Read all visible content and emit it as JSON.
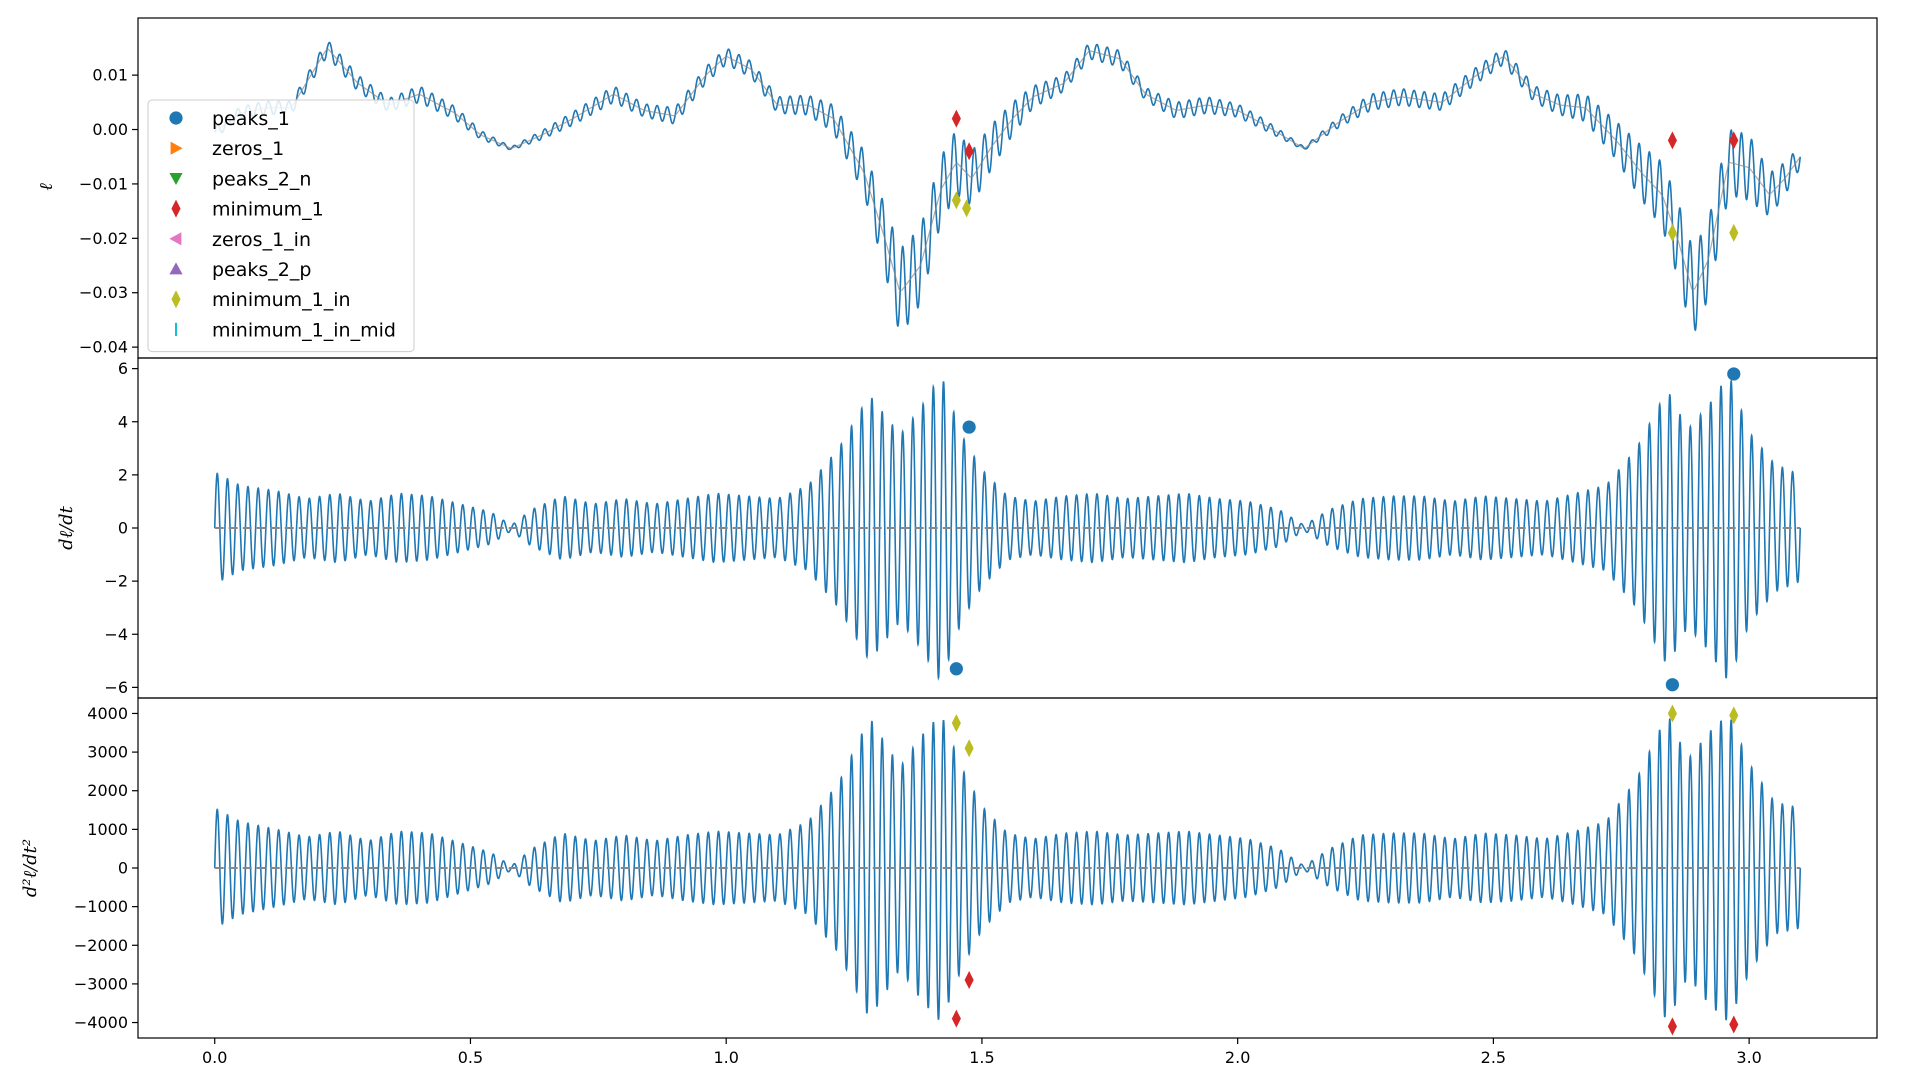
{
  "chart_data": [
    {
      "type": "line",
      "panel": "top",
      "ylabel": "ℓ",
      "xlim": [
        -0.15,
        3.25
      ],
      "ylim": [
        -0.042,
        0.0205
      ],
      "yticks": [
        0.01,
        0.0,
        -0.01,
        -0.02,
        -0.03,
        -0.04
      ],
      "ytick_labels": [
        "0.01",
        "0.00",
        "−0.01",
        "−0.02",
        "−0.03",
        "−0.04"
      ],
      "x_range": [
        0.0,
        3.1
      ],
      "oscillation_cycles": 155,
      "envelope_x": [
        0.0,
        0.05,
        0.1,
        0.15,
        0.22,
        0.28,
        0.34,
        0.4,
        0.47,
        0.52,
        0.58,
        0.64,
        0.7,
        0.78,
        0.84,
        0.9,
        0.96,
        1.0,
        1.05,
        1.1,
        1.16,
        1.21,
        1.27,
        1.31,
        1.34,
        1.38,
        1.42,
        1.45,
        1.48,
        1.52,
        1.56,
        1.6,
        1.66,
        1.71,
        1.77,
        1.82,
        1.88,
        1.94,
        2.0,
        2.05,
        2.13,
        2.2,
        2.26,
        2.32,
        2.4,
        2.46,
        2.52,
        2.58,
        2.63,
        2.68,
        2.74,
        2.79,
        2.83,
        2.86,
        2.89,
        2.92,
        2.96,
        3.0,
        3.04,
        3.07,
        3.1
      ],
      "envelope_mid": [
        -0.0005,
        0.003,
        0.004,
        0.004,
        0.015,
        0.0085,
        0.0045,
        0.0065,
        0.003,
        -0.001,
        -0.0035,
        -0.001,
        0.002,
        0.0065,
        0.0035,
        0.0025,
        0.01,
        0.0135,
        0.011,
        0.0045,
        0.0045,
        0.002,
        -0.008,
        -0.02,
        -0.03,
        -0.025,
        -0.011,
        -0.006,
        -0.009,
        -0.003,
        0.002,
        0.006,
        0.0085,
        0.0145,
        0.013,
        0.0065,
        0.0035,
        0.0045,
        0.0035,
        0.001,
        -0.0035,
        0.0015,
        0.005,
        0.006,
        0.005,
        0.0095,
        0.0135,
        0.0065,
        0.0045,
        0.004,
        -0.002,
        -0.008,
        -0.012,
        -0.02,
        -0.03,
        -0.024,
        -0.006,
        -0.007,
        -0.012,
        -0.009,
        -0.005
      ],
      "envelope_amp": [
        0.001,
        0.0012,
        0.0012,
        0.0012,
        0.0015,
        0.0015,
        0.0012,
        0.0015,
        0.0012,
        0.0008,
        0.0003,
        0.0008,
        0.0012,
        0.0015,
        0.0012,
        0.0015,
        0.0015,
        0.0015,
        0.0015,
        0.0015,
        0.0018,
        0.0025,
        0.004,
        0.006,
        0.008,
        0.007,
        0.006,
        0.006,
        0.005,
        0.004,
        0.003,
        0.002,
        0.0015,
        0.0015,
        0.0015,
        0.0012,
        0.0015,
        0.0015,
        0.0012,
        0.001,
        0.0003,
        0.001,
        0.0015,
        0.0015,
        0.0015,
        0.0015,
        0.0015,
        0.0015,
        0.0018,
        0.0025,
        0.0035,
        0.005,
        0.006,
        0.007,
        0.008,
        0.007,
        0.006,
        0.006,
        0.004,
        0.003,
        0.002
      ],
      "markers": [
        {
          "series": "minimum_1",
          "points": [
            [
              1.45,
              0.002
            ],
            [
              1.475,
              -0.004
            ],
            [
              2.85,
              -0.002
            ],
            [
              2.97,
              -0.002
            ]
          ]
        },
        {
          "series": "minimum_1_in",
          "points": [
            [
              1.45,
              -0.013
            ],
            [
              1.47,
              -0.0145
            ],
            [
              2.85,
              -0.019
            ],
            [
              2.97,
              -0.019
            ]
          ]
        }
      ],
      "legend": {
        "placement": "upper-left",
        "entries": [
          {
            "label": "peaks_1",
            "marker": "circle",
            "color": "#1f77b4"
          },
          {
            "label": "zeros_1",
            "marker": "triangle-right",
            "color": "#ff7f0e"
          },
          {
            "label": "peaks_2_n",
            "marker": "triangle-down",
            "color": "#2ca02c"
          },
          {
            "label": "minimum_1",
            "marker": "thin-diamond",
            "color": "#d62728"
          },
          {
            "label": "zeros_1_in",
            "marker": "triangle-left",
            "color": "#e377c2"
          },
          {
            "label": "peaks_2_p",
            "marker": "triangle-up",
            "color": "#9467bd"
          },
          {
            "label": "minimum_1_in",
            "marker": "thin-diamond",
            "color": "#bcbd22"
          },
          {
            "label": "minimum_1_in_mid",
            "marker": "vline",
            "color": "#17becf"
          }
        ]
      }
    },
    {
      "type": "line",
      "panel": "middle",
      "ylabel": "dℓ/dt",
      "xlim": [
        -0.15,
        3.25
      ],
      "ylim": [
        -6.4,
        6.4
      ],
      "yticks": [
        6,
        4,
        2,
        0,
        -2,
        -4,
        -6
      ],
      "ytick_labels": [
        "6",
        "4",
        "2",
        "0",
        "−2",
        "−4",
        "−6"
      ],
      "x_range": [
        0.0,
        3.1
      ],
      "oscillation_cycles": 155,
      "envelope_x": [
        0.0,
        0.05,
        0.12,
        0.18,
        0.24,
        0.3,
        0.36,
        0.42,
        0.48,
        0.54,
        0.58,
        0.62,
        0.68,
        0.74,
        0.8,
        0.86,
        0.92,
        0.98,
        1.04,
        1.1,
        1.16,
        1.22,
        1.28,
        1.34,
        1.38,
        1.42,
        1.46,
        1.5,
        1.55,
        1.6,
        1.66,
        1.72,
        1.78,
        1.84,
        1.9,
        1.96,
        2.02,
        2.08,
        2.13,
        2.18,
        2.24,
        2.3,
        2.36,
        2.42,
        2.48,
        2.54,
        2.6,
        2.66,
        2.72,
        2.78,
        2.84,
        2.88,
        2.92,
        2.96,
        3.0,
        3.05,
        3.1
      ],
      "envelope_amp": [
        2.1,
        1.6,
        1.4,
        1.1,
        1.3,
        1.0,
        1.3,
        1.2,
        0.9,
        0.6,
        0.1,
        0.7,
        1.2,
        0.9,
        1.1,
        0.9,
        1.1,
        1.3,
        1.2,
        1.1,
        1.6,
        3.0,
        5.0,
        3.5,
        4.5,
        5.8,
        3.5,
        2.2,
        1.2,
        1.0,
        1.2,
        1.3,
        1.1,
        1.2,
        1.3,
        1.1,
        1.0,
        0.7,
        0.1,
        0.7,
        1.1,
        1.2,
        1.2,
        1.0,
        1.2,
        1.1,
        1.0,
        1.3,
        1.6,
        3.0,
        5.2,
        3.7,
        4.6,
        5.8,
        3.6,
        2.4,
        2.0
      ],
      "markers": [
        {
          "series": "peaks_1",
          "points": [
            [
              1.45,
              -5.3
            ],
            [
              1.475,
              3.8
            ],
            [
              2.85,
              -5.9
            ],
            [
              2.97,
              5.8
            ]
          ]
        }
      ]
    },
    {
      "type": "line",
      "panel": "bottom",
      "ylabel": "d²ℓ/dt²",
      "xlim": [
        -0.15,
        3.25
      ],
      "ylim": [
        -4400,
        4400
      ],
      "yticks": [
        4000,
        3000,
        2000,
        1000,
        0,
        -1000,
        -2000,
        -3000,
        -4000
      ],
      "ytick_labels": [
        "4000",
        "3000",
        "2000",
        "1000",
        "0",
        "−1000",
        "−2000",
        "−3000",
        "−4000"
      ],
      "xticks": [
        0.0,
        0.5,
        1.0,
        1.5,
        2.0,
        2.5,
        3.0
      ],
      "xtick_labels": [
        "0.0",
        "0.5",
        "1.0",
        "1.5",
        "2.0",
        "2.5",
        "3.0"
      ],
      "x_range": [
        0.0,
        3.1
      ],
      "oscillation_cycles": 155,
      "envelope_x": [
        0.0,
        0.05,
        0.12,
        0.18,
        0.24,
        0.3,
        0.36,
        0.42,
        0.48,
        0.54,
        0.58,
        0.62,
        0.68,
        0.74,
        0.8,
        0.86,
        0.92,
        0.98,
        1.04,
        1.1,
        1.16,
        1.22,
        1.28,
        1.34,
        1.38,
        1.42,
        1.46,
        1.5,
        1.55,
        1.6,
        1.66,
        1.72,
        1.78,
        1.84,
        1.9,
        1.96,
        2.02,
        2.08,
        2.13,
        2.18,
        2.24,
        2.3,
        2.36,
        2.42,
        2.48,
        2.54,
        2.6,
        2.66,
        2.72,
        2.78,
        2.84,
        2.88,
        2.92,
        2.96,
        3.0,
        3.05,
        3.1
      ],
      "envelope_amp": [
        1550,
        1200,
        1000,
        800,
        950,
        700,
        950,
        900,
        650,
        400,
        50,
        500,
        900,
        700,
        850,
        700,
        850,
        950,
        900,
        850,
        1200,
        2200,
        3900,
        2600,
        3400,
        4000,
        2600,
        1600,
        900,
        750,
        900,
        950,
        850,
        900,
        950,
        850,
        750,
        500,
        50,
        500,
        850,
        900,
        900,
        750,
        900,
        850,
        750,
        950,
        1200,
        2300,
        4000,
        2800,
        3500,
        4000,
        2700,
        1700,
        1550
      ],
      "markers": [
        {
          "series": "minimum_1",
          "points": [
            [
              1.45,
              -3900
            ],
            [
              1.475,
              -2900
            ],
            [
              2.85,
              -4100
            ],
            [
              2.97,
              -4050
            ]
          ]
        },
        {
          "series": "minimum_1_in",
          "points": [
            [
              1.45,
              3750
            ],
            [
              1.475,
              3100
            ],
            [
              2.85,
              4000
            ],
            [
              2.97,
              3950
            ]
          ]
        }
      ]
    }
  ],
  "colors": {
    "signal": "#1f77b4",
    "reference": "#888888",
    "axes": "#000000"
  }
}
